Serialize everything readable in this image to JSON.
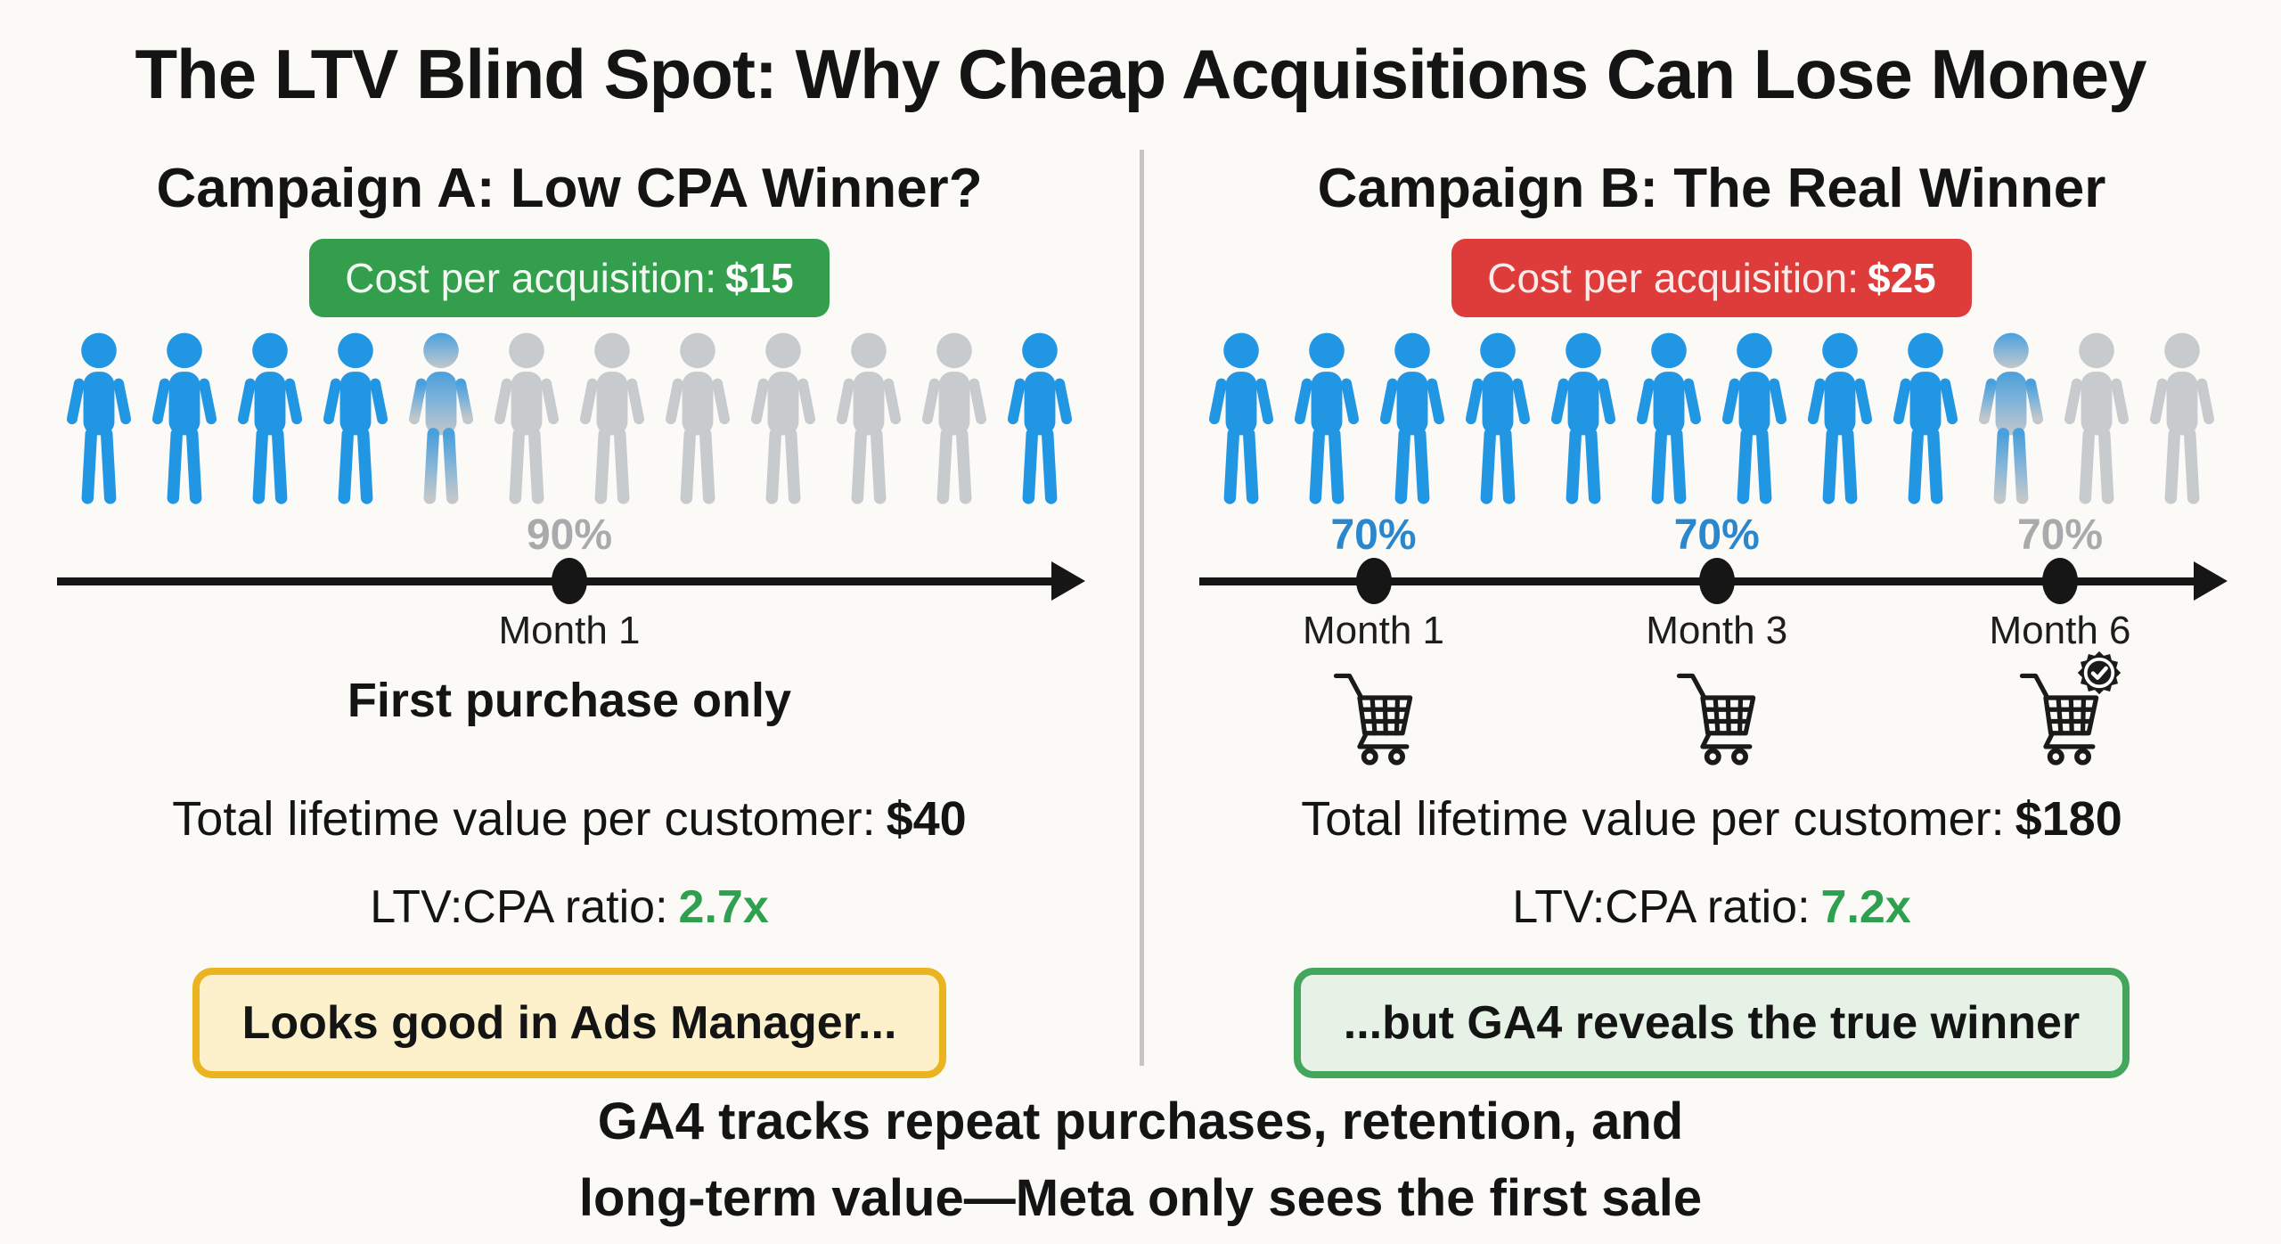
{
  "title": "The LTV Blind Spot: Why Cheap Acquisitions Can Lose Money",
  "colors": {
    "canvas_bg": "#FBFAF7",
    "divider": "#C5C5C3",
    "badge_green": "#339F4D",
    "badge_red": "#DE3B3B",
    "person_blue": "#2196E3",
    "person_gray": "#C8CBCE",
    "person_fade_top": "#4AA0DC",
    "person_fade_bottom": "#C3C7CA",
    "percent_blue": "#2B87CD",
    "percent_gray": "#A8AAAC",
    "ratio_green": "#2FA050",
    "callout_yellow_border": "#EAB31F",
    "callout_yellow_bg": "#FCF1CB",
    "callout_green_border": "#43A65C",
    "callout_green_bg": "#E7F2E7"
  },
  "campaign_a": {
    "header": "Campaign A: Low CPA Winner?",
    "badge_label": "Cost per acquisition:",
    "badge_value": "$15",
    "people": [
      "blue",
      "blue",
      "blue",
      "blue",
      "fade",
      "gray",
      "gray",
      "gray",
      "gray",
      "gray",
      "gray",
      "blue"
    ],
    "timeline": {
      "points": [
        {
          "pos": 50,
          "percent": "90%",
          "percent_color": "gray",
          "month": "Month 1",
          "cart": "none"
        }
      ]
    },
    "note": "First purchase only",
    "ltv_label": "Total lifetime value per customer:",
    "ltv_value": "$40",
    "ratio_label": "LTV:CPA ratio:",
    "ratio_value": "2.7x",
    "callout": "Looks good in Ads Manager..."
  },
  "campaign_b": {
    "header": "Campaign B: The Real Winner",
    "badge_label": "Cost per acquisition:",
    "badge_value": "$25",
    "people": [
      "blue",
      "blue",
      "blue",
      "blue",
      "blue",
      "blue",
      "blue",
      "blue",
      "blue",
      "fade",
      "gray",
      "gray"
    ],
    "timeline": {
      "points": [
        {
          "pos": 17,
          "percent": "70%",
          "percent_color": "blue",
          "month": "Month 1",
          "cart": "plain"
        },
        {
          "pos": 50.5,
          "percent": "70%",
          "percent_color": "blue",
          "month": "Month 3",
          "cart": "plain"
        },
        {
          "pos": 84,
          "percent": "70%",
          "percent_color": "gray",
          "month": "Month 6",
          "cart": "badged"
        }
      ]
    },
    "ltv_label": "Total lifetime value per customer:",
    "ltv_value": "$180",
    "ratio_label": "LTV:CPA ratio:",
    "ratio_value": "7.2x",
    "callout": "...but GA4 reveals the true winner"
  },
  "footer": {
    "line1": "GA4 tracks repeat purchases, retention, and",
    "line2": "long-term value—Meta only sees the first sale"
  }
}
